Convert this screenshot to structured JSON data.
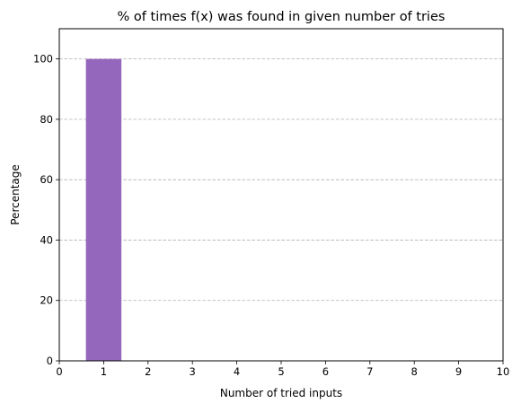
{
  "chart_data": {
    "type": "bar",
    "title": "% of times f(x) was found in given number of tries",
    "xlabel": "Number of tried inputs",
    "ylabel": "Percentage",
    "x": [
      1
    ],
    "values": [
      100
    ],
    "bar_width": 0.8,
    "xlim": [
      0,
      10
    ],
    "ylim": [
      0,
      110
    ],
    "xticks": [
      0,
      1,
      2,
      3,
      4,
      5,
      6,
      7,
      8,
      9,
      10
    ],
    "yticks": [
      0,
      20,
      40,
      60,
      80,
      100
    ],
    "grid": "y-dashed",
    "bar_color": "#9467bd",
    "grid_color": "#b0b0b0"
  }
}
